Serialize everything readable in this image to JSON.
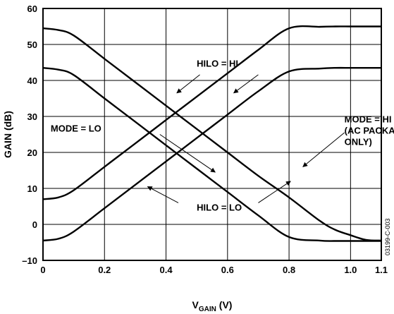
{
  "chart_data": {
    "type": "line",
    "xlabel": "V",
    "xlabel_sub": "GAIN",
    "xlabel_unit": " (V)",
    "ylabel": "GAIN (dB)",
    "xlim": [
      0,
      1.1
    ],
    "ylim": [
      -10,
      60
    ],
    "grid": true,
    "xticks": [
      0,
      0.2,
      0.4,
      0.6,
      0.8,
      1.0,
      1.1
    ],
    "xtick_labels": [
      "0",
      "0.2",
      "0.4",
      "0.6",
      "0.8",
      "1.0",
      "1.1"
    ],
    "yticks": [
      -10,
      0,
      10,
      20,
      30,
      40,
      50,
      60
    ],
    "ytick_labels": [
      "–10",
      "0",
      "10",
      "20",
      "30",
      "40",
      "50",
      "60"
    ],
    "series": [
      {
        "x": [
          0,
          0.05,
          0.1,
          0.2,
          0.3,
          0.4,
          0.5,
          0.6,
          0.7,
          0.8,
          0.9,
          0.95,
          1.0,
          1.05,
          1.1
        ],
        "values": [
          54.5,
          54,
          52.5,
          46,
          39.5,
          33,
          26.5,
          20,
          13.5,
          7.5,
          1,
          -1.5,
          -3,
          -4.3,
          -4.5
        ]
      },
      {
        "x": [
          0,
          0.05,
          0.1,
          0.2,
          0.3,
          0.4,
          0.5,
          0.6,
          0.7,
          0.8,
          0.9,
          0.95,
          1.0,
          1.05,
          1.1
        ],
        "values": [
          43.5,
          43,
          41.5,
          35,
          28.5,
          22,
          15.5,
          9,
          2.5,
          -3.5,
          -4.5,
          -4.6,
          -4.6,
          -4.6,
          -4.6
        ]
      },
      {
        "x": [
          0,
          0.05,
          0.1,
          0.2,
          0.3,
          0.4,
          0.5,
          0.6,
          0.7,
          0.8,
          0.9,
          0.95,
          1.0,
          1.05,
          1.1
        ],
        "values": [
          7,
          7.5,
          9.5,
          16,
          22.5,
          29,
          35.5,
          42,
          48.5,
          54.5,
          54.9,
          55,
          55,
          55,
          55
        ]
      },
      {
        "x": [
          0,
          0.05,
          0.1,
          0.2,
          0.3,
          0.4,
          0.5,
          0.6,
          0.7,
          0.8,
          0.9,
          0.95,
          1.0,
          1.05,
          1.1
        ],
        "values": [
          -4.5,
          -4,
          -2,
          4.5,
          11,
          17.5,
          24,
          30.5,
          37,
          42.5,
          43.3,
          43.5,
          43.5,
          43.5,
          43.5
        ]
      }
    ],
    "annotations": [
      {
        "lines": [
          "HILO = HI"
        ],
        "tx": 0.5,
        "ty": 43.8,
        "anchor": "start",
        "arrows": [
          {
            "from": [
              0.51,
              41.6
            ],
            "to": [
              0.435,
              36.5
            ]
          },
          {
            "from": [
              0.7,
              41.6
            ],
            "to": [
              0.62,
              36.5
            ]
          }
        ]
      },
      {
        "lines": [
          "MODE = LO"
        ],
        "tx": 0.025,
        "ty": 25.8,
        "anchor": "start",
        "arrows": [
          {
            "from": [
              0.38,
              25
            ],
            "to": [
              0.56,
              14.5
            ]
          }
        ]
      },
      {
        "lines": [
          "HILO = LO"
        ],
        "tx": 0.5,
        "ty": 3.8,
        "anchor": "start",
        "arrows": [
          {
            "from": [
              0.44,
              6
            ],
            "to": [
              0.34,
              10.5
            ]
          },
          {
            "from": [
              0.7,
              6
            ],
            "to": [
              0.805,
              12
            ]
          }
        ]
      },
      {
        "lines": [
          "MODE = HI",
          "(AC PACKAGE",
          "ONLY)"
        ],
        "tx": 0.98,
        "ty": 28.3,
        "anchor": "start",
        "arrows": [
          {
            "from": [
              0.98,
              25.5
            ],
            "to": [
              0.845,
              16
            ]
          }
        ]
      }
    ],
    "figure_code": "03199-C-003"
  }
}
